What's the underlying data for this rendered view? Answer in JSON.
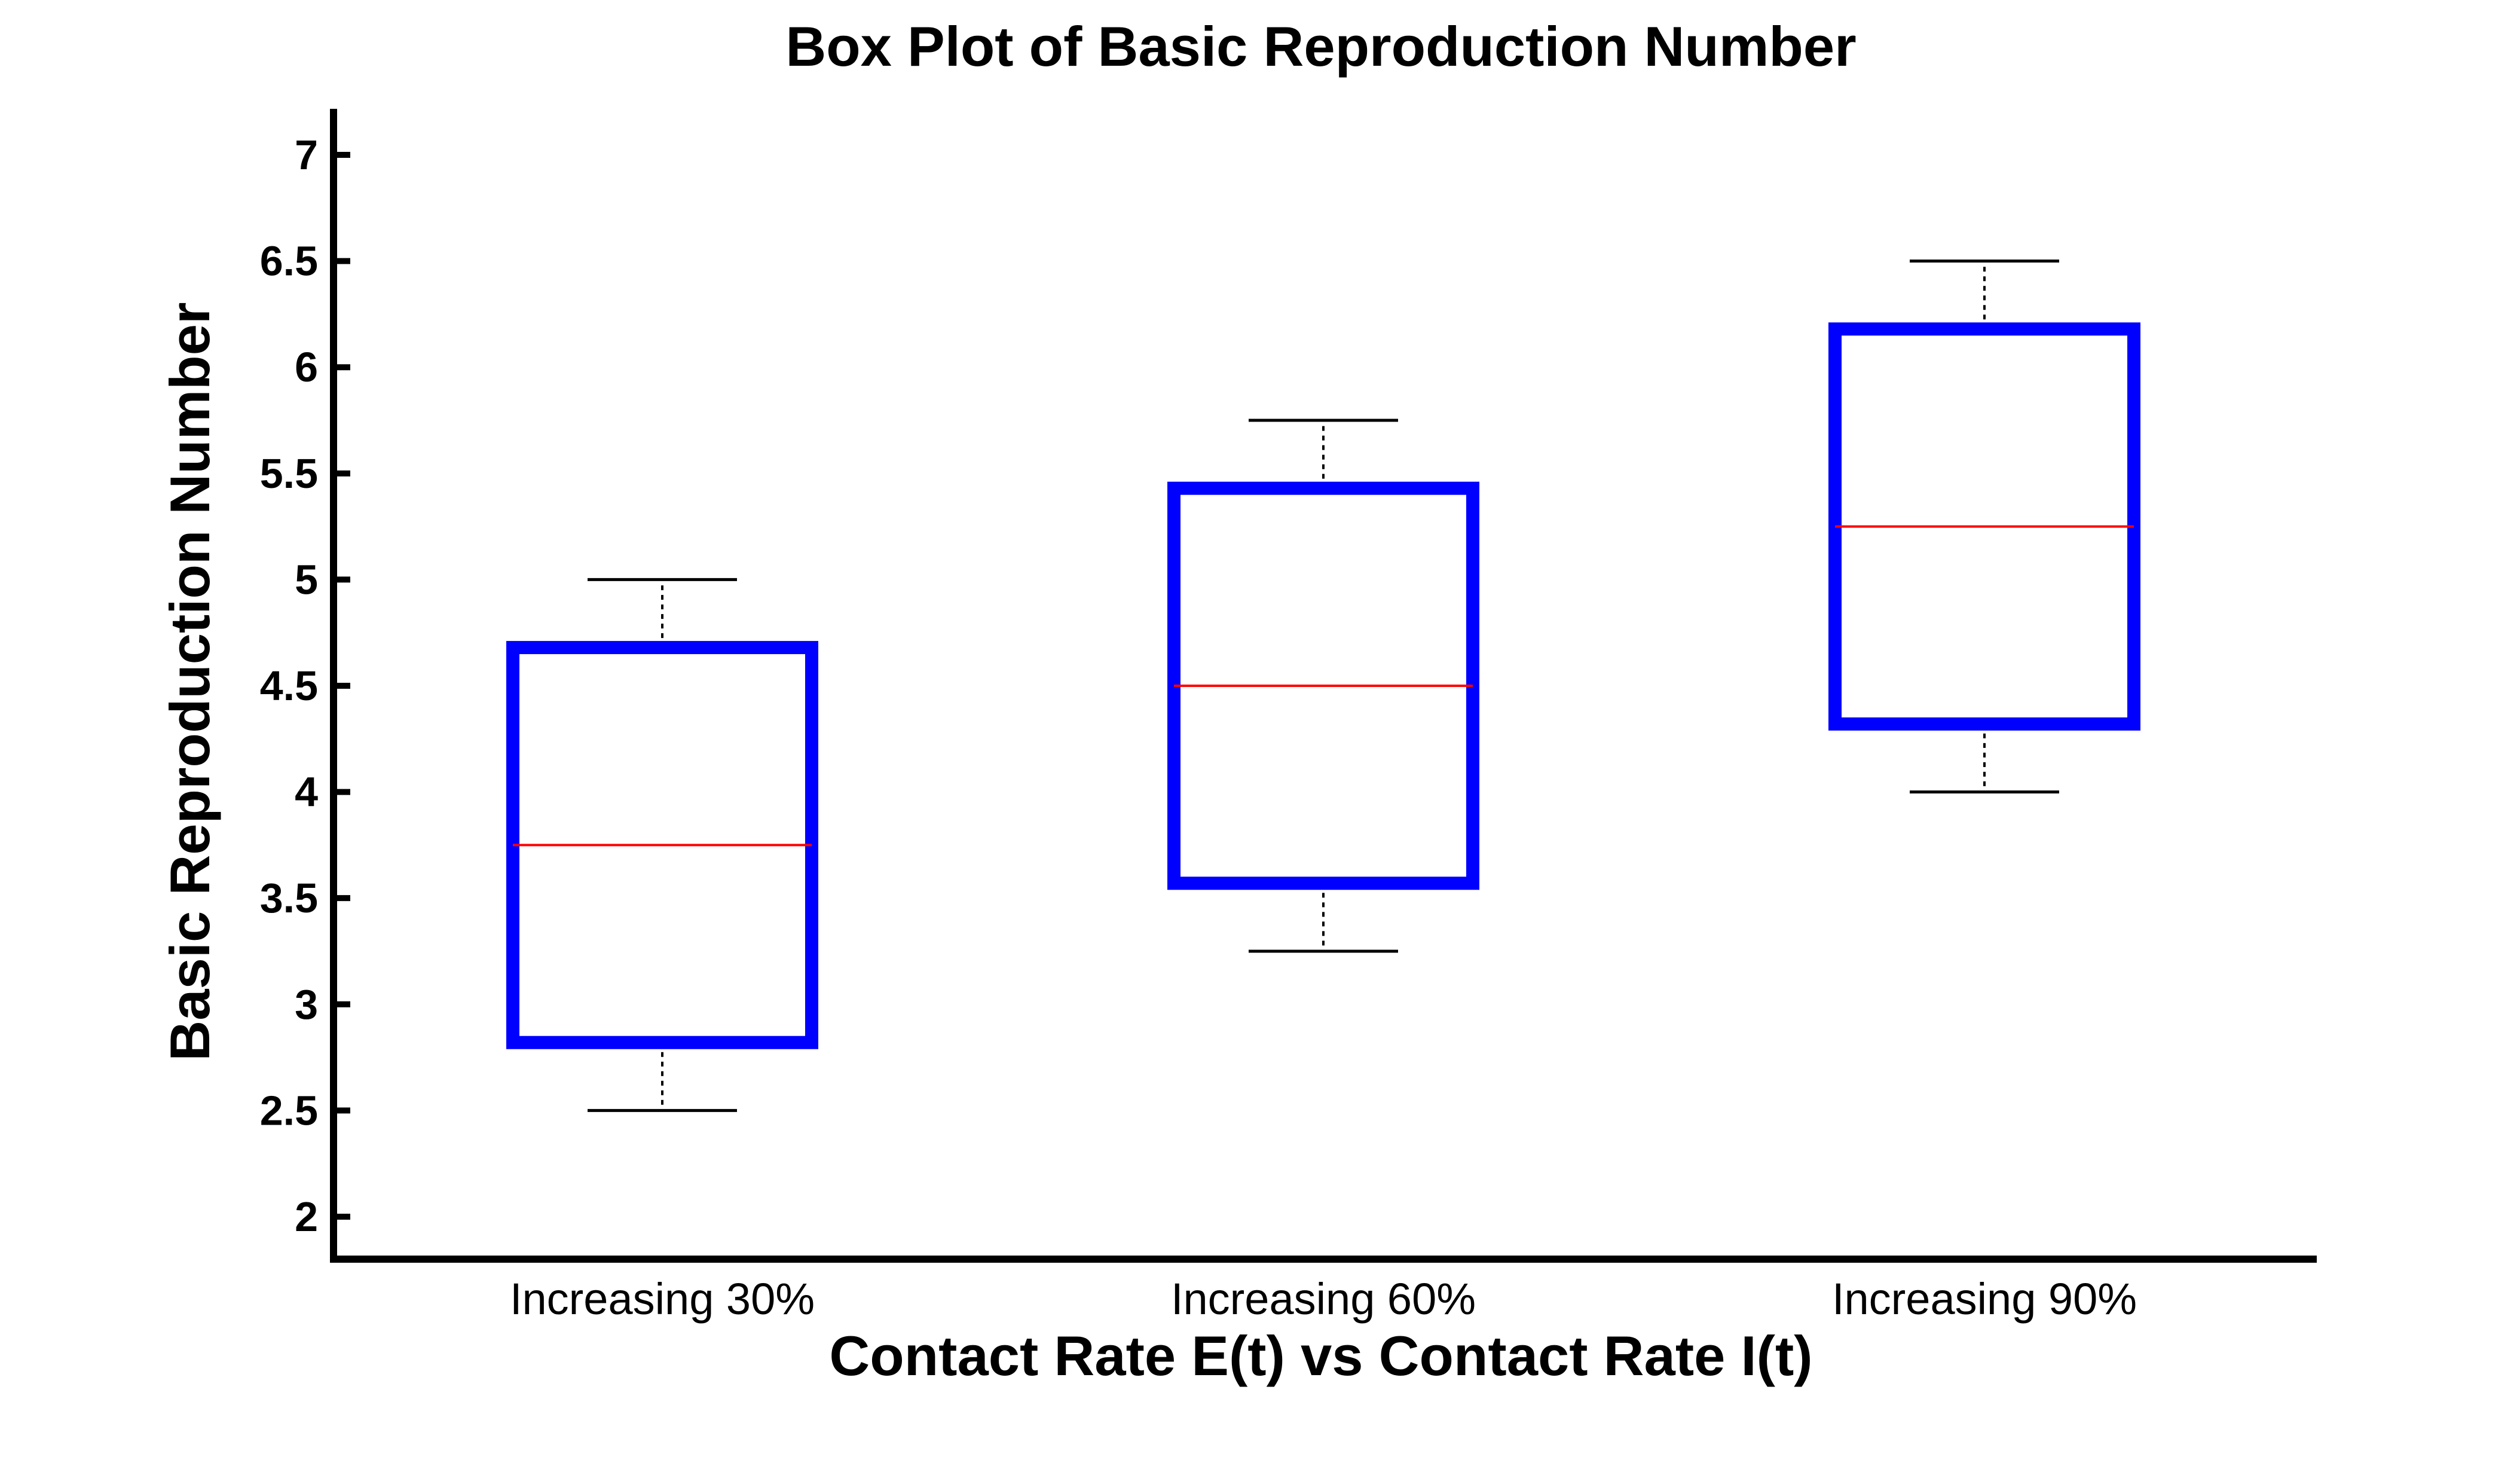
{
  "chart_data": {
    "type": "box",
    "title": "Box Plot of Basic Reproduction Number",
    "xlabel": "Contact Rate E(t) vs Contact Rate I(t)",
    "ylabel": "Basic Reproduction Number",
    "categories": [
      "Increasing 30%",
      "Increasing 60%",
      "Increasing 90%"
    ],
    "ylim": [
      1.8,
      7.2
    ],
    "yticks": [
      2,
      2.5,
      3,
      3.5,
      4,
      4.5,
      5,
      5.5,
      6,
      6.5,
      7
    ],
    "ytick_labels": [
      "2",
      "2.5",
      "3",
      "3.5",
      "4",
      "4.5",
      "5",
      "5.5",
      "6",
      "6.5",
      "7"
    ],
    "boxes": [
      {
        "min": 2.5,
        "q1": 2.82,
        "median": 3.75,
        "q3": 4.68,
        "max": 5.0
      },
      {
        "min": 3.25,
        "q1": 3.57,
        "median": 4.5,
        "q3": 5.43,
        "max": 5.75
      },
      {
        "min": 4.0,
        "q1": 4.32,
        "median": 5.25,
        "q3": 6.18,
        "max": 6.5
      }
    ],
    "colors": {
      "box": "#0000ff",
      "median": "#ff0000",
      "whisker": "#000000",
      "axis": "#000000"
    },
    "grid": false,
    "legend": false
  }
}
